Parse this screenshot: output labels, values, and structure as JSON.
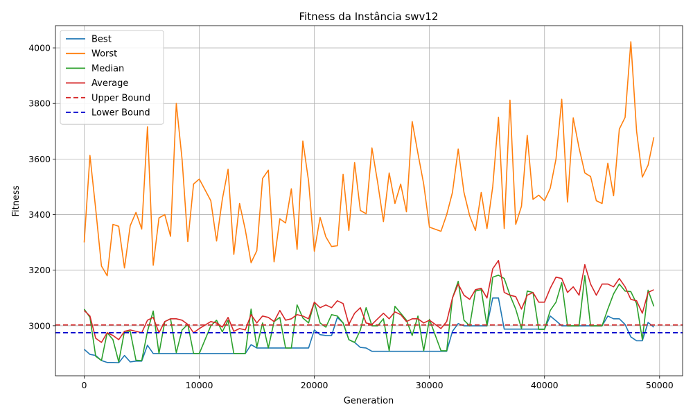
{
  "chart_data": {
    "type": "line",
    "title": "Fitness da Instância swv12",
    "xlabel": "Generation",
    "ylabel": "Fitness",
    "xlim": [
      -2500,
      52000
    ],
    "ylim": [
      2820,
      4080
    ],
    "xticks": [
      0,
      10000,
      20000,
      30000,
      40000,
      50000
    ],
    "yticks": [
      3000,
      3200,
      3400,
      3600,
      3800,
      4000
    ],
    "grid": true,
    "legend_position": "upper-left",
    "x": [
      0,
      500,
      1000,
      1500,
      2000,
      2500,
      3000,
      3500,
      4000,
      4500,
      5000,
      5500,
      6000,
      6500,
      7000,
      7500,
      8000,
      8500,
      9000,
      9500,
      10000,
      11000,
      11500,
      12000,
      12500,
      13000,
      13500,
      14000,
      14500,
      15000,
      15500,
      16000,
      16500,
      17000,
      17500,
      18000,
      18500,
      19000,
      19500,
      20000,
      20500,
      21000,
      21500,
      22000,
      22500,
      23000,
      23500,
      24000,
      24500,
      25000,
      25500,
      26000,
      26500,
      27000,
      27500,
      28000,
      28500,
      29000,
      29500,
      30000,
      31000,
      31500,
      32000,
      32500,
      33000,
      33500,
      34000,
      34500,
      35000,
      35500,
      36000,
      36500,
      37000,
      37500,
      38000,
      38500,
      39000,
      39500,
      40000,
      40500,
      41000,
      41500,
      42000,
      42500,
      43000,
      43500,
      44000,
      44500,
      45000,
      45500,
      46000,
      46500,
      47000,
      47500,
      48000,
      48500,
      49000,
      49500
    ],
    "series": [
      {
        "name": "Best",
        "color": "#1f77b4",
        "dash": "",
        "values": [
          2915,
          2897,
          2893,
          2875,
          2868,
          2868,
          2867,
          2893,
          2870,
          2873,
          2873,
          2930,
          2900,
          2900,
          2900,
          2900,
          2900,
          2900,
          2900,
          2900,
          2900,
          2900,
          2900,
          2900,
          2900,
          2900,
          2900,
          2900,
          2932,
          2920,
          2920,
          2920,
          2920,
          2920,
          2920,
          2920,
          2920,
          2920,
          2920,
          2985,
          2968,
          2965,
          2965,
          3030,
          3010,
          2950,
          2940,
          2922,
          2920,
          2908,
          2908,
          2908,
          2908,
          2908,
          2908,
          2908,
          2908,
          2908,
          2908,
          2908,
          2908,
          2908,
          2980,
          3008,
          3000,
          3000,
          3000,
          3000,
          3000,
          3100,
          3100,
          2988,
          2988,
          2988,
          2988,
          2988,
          2988,
          2988,
          2988,
          3035,
          3018,
          3000,
          3000,
          3000,
          3000,
          3000,
          3000,
          3000,
          3000,
          3035,
          3025,
          3025,
          3005,
          2960,
          2946,
          2946,
          3012,
          2995
        ]
      },
      {
        "name": "Worst",
        "color": "#ff7f0e",
        "dash": "",
        "values": [
          3300,
          3613,
          3420,
          3215,
          3180,
          3365,
          3358,
          3208,
          3360,
          3408,
          3348,
          3716,
          3218,
          3388,
          3400,
          3322,
          3800,
          3600,
          3303,
          3510,
          3528,
          3450,
          3305,
          3455,
          3563,
          3257,
          3440,
          3345,
          3227,
          3270,
          3530,
          3560,
          3230,
          3385,
          3370,
          3493,
          3275,
          3665,
          3520,
          3268,
          3390,
          3320,
          3285,
          3288,
          3545,
          3343,
          3587,
          3415,
          3403,
          3640,
          3515,
          3375,
          3550,
          3440,
          3510,
          3410,
          3735,
          3620,
          3510,
          3355,
          3340,
          3400,
          3480,
          3636,
          3480,
          3395,
          3343,
          3480,
          3350,
          3500,
          3750,
          3350,
          3812,
          3365,
          3430,
          3685,
          3455,
          3470,
          3450,
          3495,
          3600,
          3815,
          3445,
          3748,
          3640,
          3550,
          3537,
          3450,
          3440,
          3585,
          3468,
          3708,
          3750,
          4022,
          3700,
          3535,
          3578,
          3678
        ]
      },
      {
        "name": "Median",
        "color": "#2ca02c",
        "dash": "",
        "values": [
          3060,
          3030,
          2890,
          2875,
          2975,
          2950,
          2870,
          2980,
          2980,
          2876,
          2875,
          2980,
          3053,
          2900,
          3015,
          3025,
          2903,
          2985,
          3005,
          2900,
          2900,
          3000,
          3020,
          2978,
          3020,
          2900,
          2900,
          2900,
          3060,
          2923,
          3010,
          2920,
          3015,
          3030,
          2920,
          2920,
          3075,
          3028,
          3010,
          3085,
          3010,
          2995,
          3040,
          3035,
          3010,
          2950,
          2940,
          2985,
          3065,
          3000,
          3000,
          3025,
          2910,
          3070,
          3045,
          3020,
          2965,
          3035,
          2910,
          3023,
          2910,
          2910,
          3100,
          3160,
          3020,
          3000,
          3125,
          3130,
          3000,
          3175,
          3182,
          3170,
          3110,
          3060,
          2990,
          3125,
          3120,
          2987,
          2987,
          3055,
          3085,
          3155,
          3000,
          3000,
          3000,
          3180,
          3000,
          3000,
          3000,
          3060,
          3115,
          3150,
          3125,
          3123,
          3080,
          2950,
          3128,
          3070
        ]
      },
      {
        "name": "Average",
        "color": "#d62728",
        "dash": "",
        "values": [
          3055,
          3035,
          2955,
          2940,
          2975,
          2965,
          2950,
          2980,
          2985,
          2980,
          2975,
          3020,
          3030,
          2975,
          3015,
          3025,
          3025,
          3020,
          3005,
          2975,
          2990,
          3015,
          3010,
          2995,
          3030,
          2980,
          2990,
          2985,
          3040,
          3010,
          3035,
          3030,
          3015,
          3055,
          3020,
          3025,
          3040,
          3035,
          3025,
          3085,
          3065,
          3075,
          3065,
          3090,
          3080,
          3005,
          3045,
          3065,
          3010,
          3005,
          3025,
          3045,
          3025,
          3050,
          3040,
          3015,
          3025,
          3025,
          3010,
          3020,
          2990,
          3015,
          3100,
          3150,
          3110,
          3095,
          3130,
          3135,
          3100,
          3205,
          3235,
          3120,
          3110,
          3105,
          3060,
          3110,
          3120,
          3085,
          3085,
          3135,
          3175,
          3170,
          3120,
          3140,
          3110,
          3220,
          3150,
          3110,
          3150,
          3150,
          3140,
          3170,
          3140,
          3095,
          3090,
          3045,
          3120,
          3130
        ]
      },
      {
        "name": "Upper Bound",
        "color": "#d62728",
        "dash": "7,4",
        "constant": 3003
      },
      {
        "name": "Lower Bound",
        "color": "#0000cc",
        "dash": "7,4",
        "constant": 2975
      }
    ]
  }
}
